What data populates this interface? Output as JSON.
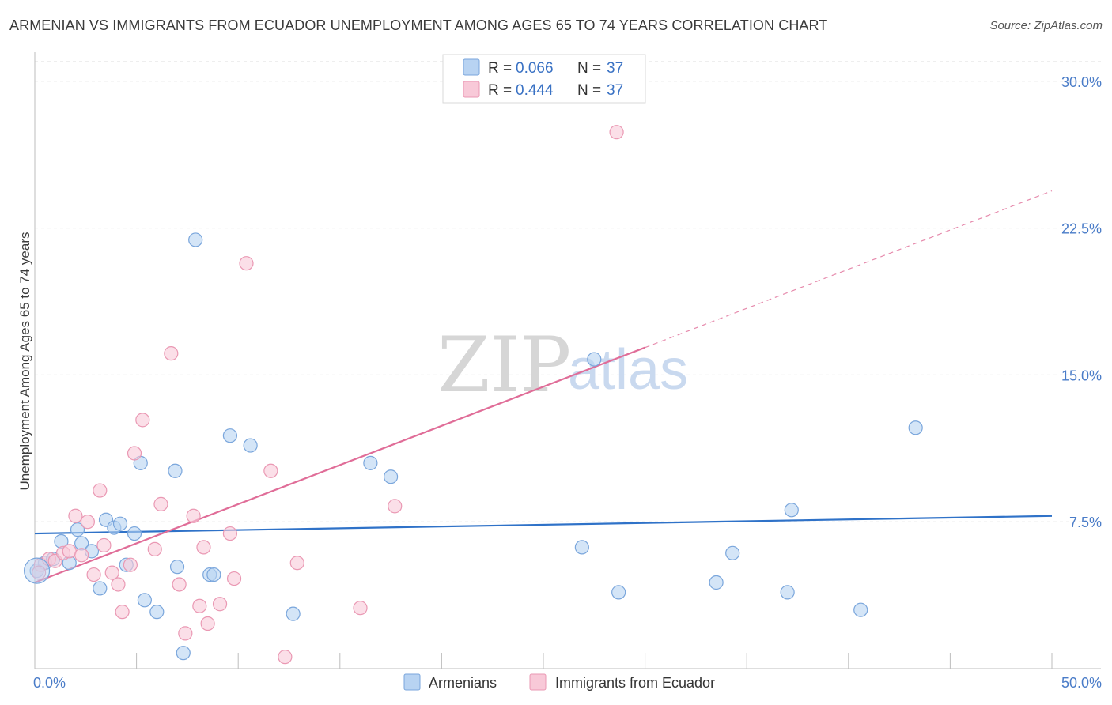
{
  "title": "ARMENIAN VS IMMIGRANTS FROM ECUADOR UNEMPLOYMENT AMONG AGES 65 TO 74 YEARS CORRELATION CHART",
  "source": "Source: ZipAtlas.com",
  "watermark": {
    "part1": "ZIP",
    "part2": "atlas"
  },
  "colors": {
    "armenians_fill": "#b8d3f2",
    "armenians_stroke": "#7aa6dc",
    "armenians_line": "#2f72c8",
    "ecuador_fill": "#f8c9d8",
    "ecuador_stroke": "#ea98b3",
    "ecuador_line": "#e06d98",
    "grid": "#dcdcdc",
    "tick_label": "#4a7cc8"
  },
  "legend": {
    "rows": [
      {
        "r_label": "R = ",
        "r_value": "0.066",
        "n_label": "N = ",
        "n_value": "37"
      },
      {
        "r_label": "R = ",
        "r_value": "0.444",
        "n_label": "N = ",
        "n_value": "37"
      }
    ]
  },
  "chart_data": {
    "type": "scatter",
    "title": "ARMENIAN VS IMMIGRANTS FROM ECUADOR UNEMPLOYMENT AMONG AGES 65 TO 74 YEARS CORRELATION CHART",
    "xlabel": "",
    "ylabel": "Unemployment Among Ages 65 to 74 years",
    "xlim": [
      0,
      50
    ],
    "ylim": [
      0,
      31
    ],
    "x_tick_labels": [
      "0.0%",
      "50.0%"
    ],
    "y_ticks": [
      7.5,
      15.0,
      22.5,
      30.0
    ],
    "y_tick_labels": [
      "7.5%",
      "15.0%",
      "22.5%",
      "30.0%"
    ],
    "grid": true,
    "legend_position": "top-center",
    "series": [
      {
        "name": "Armenians",
        "r": 0.066,
        "n": 37,
        "trend": {
          "x0": 0,
          "y0": 6.9,
          "x1": 50,
          "y1": 7.8,
          "dashed_from": null
        },
        "points": [
          [
            0.1,
            5.0
          ],
          [
            0.5,
            5.4
          ],
          [
            0.9,
            5.6
          ],
          [
            1.3,
            6.5
          ],
          [
            1.7,
            5.4
          ],
          [
            2.1,
            7.1
          ],
          [
            2.3,
            6.4
          ],
          [
            2.8,
            6.0
          ],
          [
            3.2,
            4.1
          ],
          [
            3.5,
            7.6
          ],
          [
            3.9,
            7.2
          ],
          [
            4.2,
            7.4
          ],
          [
            4.5,
            5.3
          ],
          [
            4.9,
            6.9
          ],
          [
            5.2,
            10.5
          ],
          [
            5.4,
            3.5
          ],
          [
            6.0,
            2.9
          ],
          [
            6.9,
            10.1
          ],
          [
            7.0,
            5.2
          ],
          [
            7.3,
            0.8
          ],
          [
            7.9,
            21.9
          ],
          [
            8.6,
            4.8
          ],
          [
            8.8,
            4.8
          ],
          [
            9.6,
            11.9
          ],
          [
            10.6,
            11.4
          ],
          [
            12.7,
            2.8
          ],
          [
            16.5,
            10.5
          ],
          [
            17.5,
            9.8
          ],
          [
            26.9,
            6.2
          ],
          [
            27.5,
            15.8
          ],
          [
            28.7,
            3.9
          ],
          [
            33.5,
            4.4
          ],
          [
            34.3,
            5.9
          ],
          [
            37.0,
            3.9
          ],
          [
            37.2,
            8.1
          ],
          [
            40.6,
            3.0
          ],
          [
            43.3,
            12.3
          ]
        ]
      },
      {
        "name": "Immigrants from Ecuador",
        "r": 0.444,
        "n": 37,
        "trend": {
          "x0": 0,
          "y0": 4.4,
          "x1": 30,
          "y1": 16.4,
          "dashed_to_x": 50,
          "dashed_to_y": 24.4
        },
        "points": [
          [
            0.3,
            5.3
          ],
          [
            0.7,
            5.6
          ],
          [
            1.0,
            5.5
          ],
          [
            1.4,
            5.9
          ],
          [
            1.7,
            6.0
          ],
          [
            2.0,
            7.8
          ],
          [
            2.3,
            5.8
          ],
          [
            2.6,
            7.5
          ],
          [
            2.9,
            4.8
          ],
          [
            3.2,
            9.1
          ],
          [
            3.4,
            6.3
          ],
          [
            3.8,
            4.9
          ],
          [
            4.1,
            4.3
          ],
          [
            4.3,
            2.9
          ],
          [
            4.7,
            5.3
          ],
          [
            4.9,
            11.0
          ],
          [
            5.3,
            12.7
          ],
          [
            5.9,
            6.1
          ],
          [
            6.2,
            8.4
          ],
          [
            6.7,
            16.1
          ],
          [
            7.1,
            4.3
          ],
          [
            7.4,
            1.8
          ],
          [
            7.8,
            7.8
          ],
          [
            8.1,
            3.2
          ],
          [
            8.3,
            6.2
          ],
          [
            8.5,
            2.3
          ],
          [
            9.1,
            3.3
          ],
          [
            9.6,
            6.9
          ],
          [
            9.8,
            4.6
          ],
          [
            10.4,
            20.7
          ],
          [
            11.6,
            10.1
          ],
          [
            12.3,
            0.6
          ],
          [
            12.9,
            5.4
          ],
          [
            16.0,
            3.1
          ],
          [
            17.7,
            8.3
          ],
          [
            28.6,
            27.4
          ],
          [
            0.2,
            4.9
          ]
        ]
      }
    ]
  },
  "bottom_legend": [
    {
      "label": "Armenians"
    },
    {
      "label": "Immigrants from Ecuador"
    }
  ]
}
